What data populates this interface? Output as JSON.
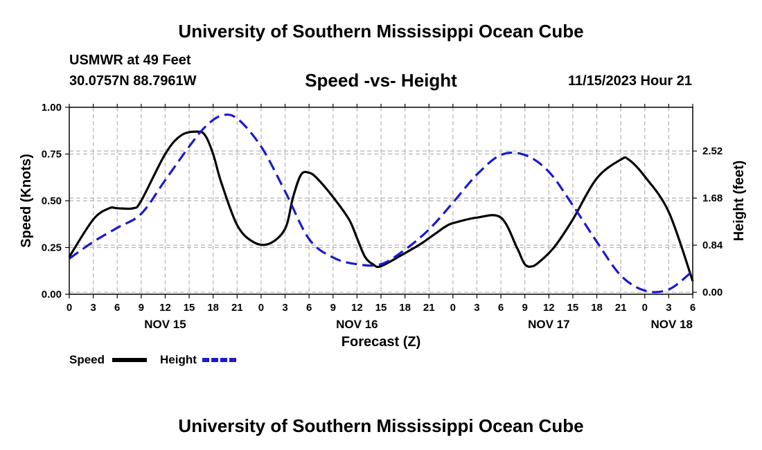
{
  "header": {
    "title": "University of Southern Mississippi Ocean Cube",
    "station_name": "USMWR at 49 Feet",
    "station_coords": "30.0757N  88.7961W",
    "subtitle": "Speed -vs- Height",
    "timestamp": "11/15/2023 Hour 21"
  },
  "footer": {
    "title": "University of Southern Mississippi Ocean Cube"
  },
  "colors": {
    "speed": "#000000",
    "height": "#1a1ad0",
    "grid": "#b4b4b4"
  },
  "chart_data": {
    "type": "line",
    "title": "Speed -vs- Height",
    "xlabel": "Forecast (Z)",
    "ylabel": "Speed (Knots)",
    "y2label": "Height (feet)",
    "x_range_hours": [
      0,
      78
    ],
    "ylim": [
      0,
      1.0
    ],
    "y2lim": [
      -0.035,
      3.3
    ],
    "x_tick_hours": [
      0,
      3,
      6,
      9,
      12,
      15,
      18,
      21,
      24,
      27,
      30,
      33,
      36,
      39,
      42,
      45,
      48,
      51,
      54,
      57,
      60,
      63,
      66,
      69,
      72,
      75,
      78
    ],
    "x_tick_labels": [
      "0",
      "3",
      "6",
      "9",
      "12",
      "15",
      "18",
      "21",
      "0",
      "3",
      "6",
      "9",
      "12",
      "15",
      "18",
      "21",
      "0",
      "3",
      "6",
      "9",
      "12",
      "15",
      "18",
      "21",
      "0",
      "3",
      "6"
    ],
    "y_ticks": [
      0,
      0.25,
      0.5,
      0.75,
      1.0
    ],
    "y_tick_labels": [
      "0.00",
      "0.25",
      "0.50",
      "0.75",
      "1.00"
    ],
    "y2_ticks": [
      0,
      0.84,
      1.68,
      2.52
    ],
    "y2_tick_labels": [
      "0.00",
      "0.84",
      "1.68",
      "2.52"
    ],
    "date_labels": [
      {
        "hour": 12,
        "label": "NOV 15"
      },
      {
        "hour": 36,
        "label": "NOV 16"
      },
      {
        "hour": 60,
        "label": "NOV 17"
      },
      {
        "hour": 78,
        "label": "NOV 18"
      }
    ],
    "series": [
      {
        "name": "Speed",
        "axis": "left",
        "style": "solid",
        "x": [
          0,
          3,
          5,
          6,
          8,
          9,
          12,
          14,
          16,
          17,
          18,
          19,
          21,
          23,
          25,
          27,
          28,
          29,
          30,
          31,
          33,
          35,
          36,
          37,
          38,
          39,
          42,
          44,
          45,
          46,
          47,
          48,
          51,
          54,
          56,
          57,
          58,
          59,
          60,
          61,
          63,
          66,
          69,
          70,
          72,
          75,
          78
        ],
        "values": [
          0.2,
          0.4,
          0.46,
          0.46,
          0.46,
          0.5,
          0.75,
          0.85,
          0.87,
          0.85,
          0.75,
          0.6,
          0.37,
          0.28,
          0.27,
          0.35,
          0.52,
          0.64,
          0.65,
          0.62,
          0.52,
          0.4,
          0.3,
          0.2,
          0.16,
          0.15,
          0.22,
          0.27,
          0.3,
          0.33,
          0.36,
          0.38,
          0.41,
          0.41,
          0.25,
          0.16,
          0.15,
          0.18,
          0.22,
          0.27,
          0.4,
          0.62,
          0.72,
          0.72,
          0.63,
          0.44,
          0.07
        ]
      },
      {
        "name": "Height",
        "axis": "right",
        "style": "dashed",
        "x": [
          0,
          3,
          6,
          9,
          12,
          15,
          17,
          19,
          21,
          24,
          27,
          30,
          33,
          36,
          39,
          42,
          45,
          48,
          51,
          54,
          57,
          60,
          63,
          66,
          69,
          72,
          75,
          78
        ],
        "values": [
          0.6,
          0.9,
          1.15,
          1.4,
          2.0,
          2.6,
          2.95,
          3.15,
          3.1,
          2.6,
          1.8,
          0.95,
          0.62,
          0.5,
          0.5,
          0.76,
          1.12,
          1.6,
          2.1,
          2.45,
          2.45,
          2.15,
          1.55,
          0.9,
          0.3,
          0.03,
          0.05,
          0.38
        ]
      }
    ],
    "legend": [
      {
        "label": "Speed",
        "style": "solid"
      },
      {
        "label": "Height",
        "style": "dashed"
      }
    ]
  }
}
